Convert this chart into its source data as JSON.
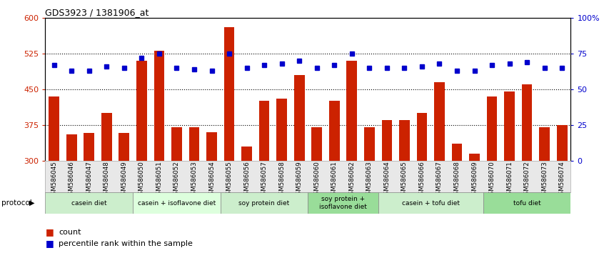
{
  "title": "GDS3923 / 1381906_at",
  "samples": [
    "GSM586045",
    "GSM586046",
    "GSM586047",
    "GSM586048",
    "GSM586049",
    "GSM586050",
    "GSM586051",
    "GSM586052",
    "GSM586053",
    "GSM586054",
    "GSM586055",
    "GSM586056",
    "GSM586057",
    "GSM586058",
    "GSM586059",
    "GSM586060",
    "GSM586061",
    "GSM586062",
    "GSM586063",
    "GSM586064",
    "GSM586065",
    "GSM586066",
    "GSM586067",
    "GSM586068",
    "GSM586069",
    "GSM586070",
    "GSM586071",
    "GSM586072",
    "GSM586073",
    "GSM586074"
  ],
  "bar_values": [
    435,
    355,
    358,
    400,
    358,
    510,
    530,
    370,
    370,
    360,
    580,
    330,
    425,
    430,
    480,
    370,
    425,
    510,
    370,
    385,
    385,
    400,
    465,
    335,
    315,
    435,
    445,
    460,
    370,
    375
  ],
  "percentile_values": [
    67,
    63,
    63,
    66,
    65,
    72,
    75,
    65,
    64,
    63,
    75,
    65,
    67,
    68,
    70,
    65,
    67,
    75,
    65,
    65,
    65,
    66,
    68,
    63,
    63,
    67,
    68,
    69,
    65,
    65
  ],
  "ylim_left": [
    300,
    600
  ],
  "ylim_right": [
    0,
    100
  ],
  "yticks_left": [
    300,
    375,
    450,
    525,
    600
  ],
  "yticks_right": [
    0,
    25,
    50,
    75,
    100
  ],
  "ytick_right_labels": [
    "0",
    "25",
    "50",
    "75",
    "100%"
  ],
  "bar_color": "#cc2200",
  "dot_color": "#0000cc",
  "protocol_groups": [
    {
      "label": "casein diet",
      "start": 0,
      "end": 5,
      "color": "#cceecc"
    },
    {
      "label": "casein + isoflavone diet",
      "start": 5,
      "end": 10,
      "color": "#ddffdd"
    },
    {
      "label": "soy protein diet",
      "start": 10,
      "end": 15,
      "color": "#cceecc"
    },
    {
      "label": "soy protein +\nisoflavone diet",
      "start": 15,
      "end": 19,
      "color": "#99dd99"
    },
    {
      "label": "casein + tofu diet",
      "start": 19,
      "end": 25,
      "color": "#cceecc"
    },
    {
      "label": "tofu diet",
      "start": 25,
      "end": 30,
      "color": "#99dd99"
    }
  ],
  "legend_count_label": "count",
  "legend_pct_label": "percentile rank within the sample",
  "protocol_label": "protocol"
}
